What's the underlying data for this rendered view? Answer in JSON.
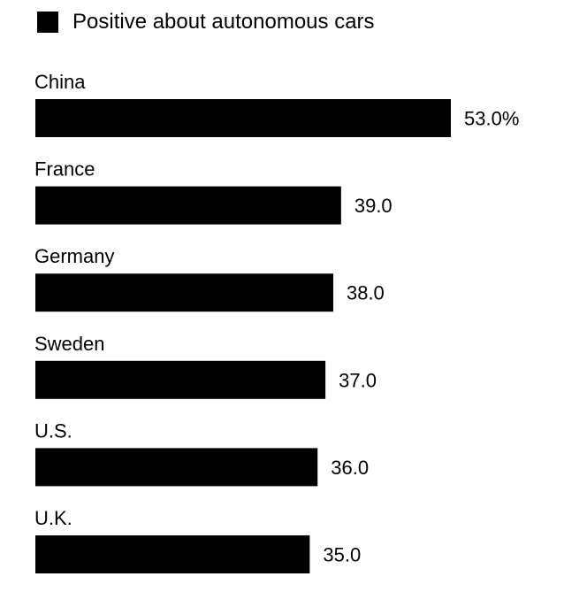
{
  "chart_data": {
    "type": "bar",
    "orientation": "horizontal",
    "legend": [
      {
        "name": "Positive about autonomous cars",
        "color": "#000000"
      }
    ],
    "categories": [
      "China",
      "France",
      "Germany",
      "Sweden",
      "U.S.",
      "U.K."
    ],
    "values": [
      53.0,
      39.0,
      38.0,
      37.0,
      36.0,
      35.0
    ],
    "value_labels": [
      "53.0%",
      "39.0",
      "38.0",
      "37.0",
      "36.0",
      "35.0"
    ],
    "xlim": [
      0,
      53.0
    ],
    "bar_color": "#000000",
    "grid": false
  }
}
